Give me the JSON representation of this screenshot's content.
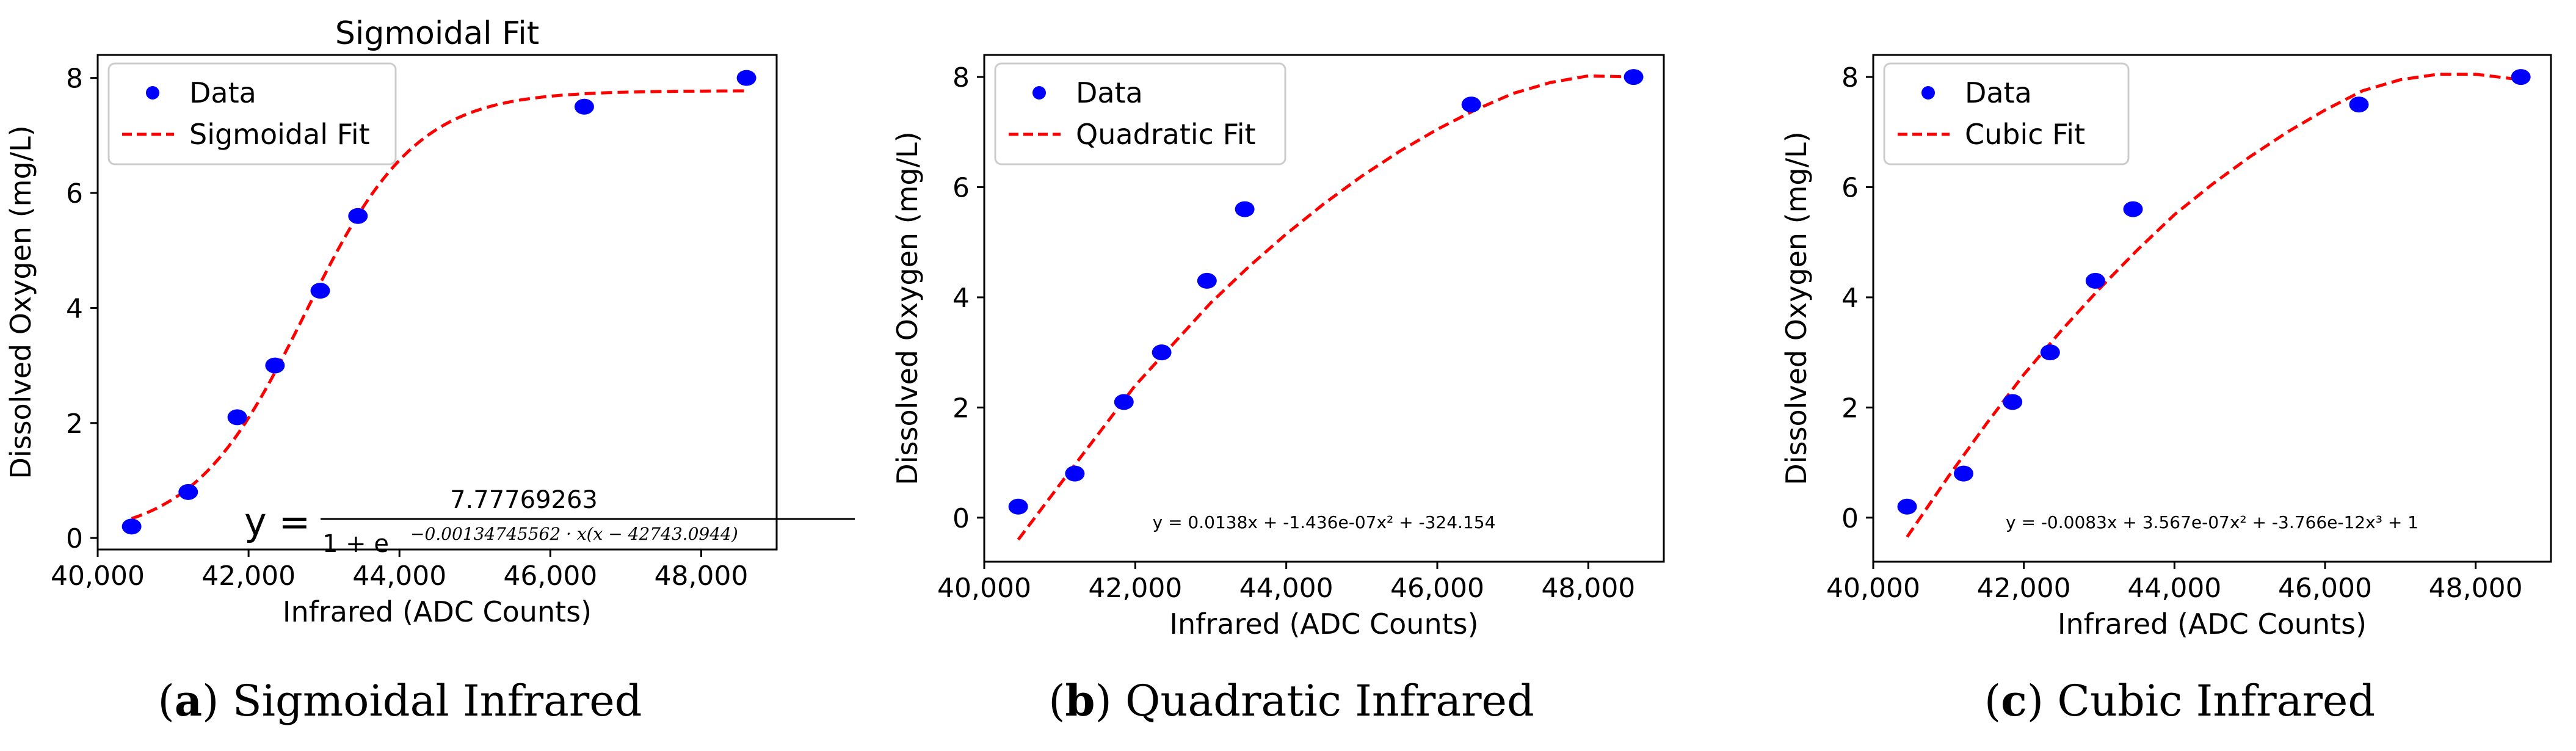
{
  "chart_data": [
    {
      "type": "scatter",
      "title": "Sigmoidal Fit",
      "xlabel": "Infrared (ADC Counts)",
      "ylabel": "Dissolved Oxygen (mg/L)",
      "xlim": [
        40000,
        49000
      ],
      "ylim": [
        -0.2,
        8.4
      ],
      "xticks": [
        40000,
        42000,
        44000,
        46000,
        48000
      ],
      "xtick_labels": [
        "40,000",
        "42,000",
        "44,000",
        "46,000",
        "48,000"
      ],
      "yticks": [
        0,
        2,
        4,
        6,
        8
      ],
      "ytick_labels": [
        "0",
        "2",
        "4",
        "6",
        "8"
      ],
      "series": [
        {
          "name": "Data",
          "kind": "points",
          "color": "#0000ff",
          "x": [
            40450,
            41200,
            41850,
            42350,
            42950,
            43450,
            46450,
            48600
          ],
          "y": [
            0.2,
            0.8,
            2.1,
            3.0,
            4.3,
            5.6,
            7.5,
            8.0
          ]
        },
        {
          "name": "Sigmoidal Fit",
          "kind": "fit",
          "model": "sigmoid",
          "color": "#ff0000",
          "params": {
            "L": 7.77769263,
            "k": 0.00134745562,
            "x0": 42743.0944
          },
          "x_range": [
            40450,
            48600
          ]
        }
      ],
      "legend": [
        "Data",
        "Sigmoidal Fit"
      ],
      "legend_position": "top-left",
      "equation": {
        "lhs": "y =",
        "numerator": "7.77769263",
        "denominator_base": "1 + e",
        "exponent": "−0.00134745562 · x(x − 42743.0944)"
      },
      "caption": {
        "letter": "a",
        "text": "Sigmoidal Infrared"
      }
    },
    {
      "type": "scatter",
      "title": "",
      "xlabel": "Infrared (ADC Counts)",
      "ylabel": "Dissolved Oxygen (mg/L)",
      "xlim": [
        40000,
        49000
      ],
      "ylim": [
        -0.8,
        8.4
      ],
      "xticks": [
        40000,
        42000,
        44000,
        46000,
        48000
      ],
      "xtick_labels": [
        "40,000",
        "42,000",
        "44,000",
        "46,000",
        "48,000"
      ],
      "yticks": [
        0,
        2,
        4,
        6,
        8
      ],
      "ytick_labels": [
        "0",
        "2",
        "4",
        "6",
        "8"
      ],
      "series": [
        {
          "name": "Data",
          "kind": "points",
          "color": "#0000ff",
          "x": [
            40450,
            41200,
            41850,
            42350,
            42950,
            43450,
            46450,
            48600
          ],
          "y": [
            0.2,
            0.8,
            2.1,
            3.0,
            4.3,
            5.6,
            7.5,
            8.0
          ]
        },
        {
          "name": "Quadratic Fit",
          "kind": "fit",
          "model": "quadratic",
          "color": "#ff0000",
          "curve_x": [
            40450,
            41000,
            41500,
            42000,
            42500,
            43000,
            43500,
            44000,
            44500,
            45000,
            45500,
            46000,
            46500,
            47000,
            47500,
            48000,
            48600
          ],
          "curve_y": [
            -0.4,
            0.6,
            1.5,
            2.4,
            3.15,
            3.9,
            4.55,
            5.15,
            5.7,
            6.2,
            6.65,
            7.05,
            7.4,
            7.7,
            7.9,
            8.02,
            8.0
          ]
        }
      ],
      "legend": [
        "Data",
        "Quadratic Fit"
      ],
      "legend_position": "top-left",
      "equation_text": "y = 0.0138x + -1.436e-07x² + -324.154",
      "caption": {
        "letter": "b",
        "text": "Quadratic Infrared"
      }
    },
    {
      "type": "scatter",
      "title": "",
      "xlabel": "Infrared (ADC Counts)",
      "ylabel": "Dissolved Oxygen (mg/L)",
      "xlim": [
        40000,
        49000
      ],
      "ylim": [
        -0.8,
        8.4
      ],
      "xticks": [
        40000,
        42000,
        44000,
        46000,
        48000
      ],
      "xtick_labels": [
        "40,000",
        "42,000",
        "44,000",
        "46,000",
        "48,000"
      ],
      "yticks": [
        0,
        2,
        4,
        6,
        8
      ],
      "ytick_labels": [
        "0",
        "2",
        "4",
        "6",
        "8"
      ],
      "series": [
        {
          "name": "Data",
          "kind": "points",
          "color": "#0000ff",
          "x": [
            40450,
            41200,
            41850,
            42350,
            42950,
            43450,
            46450,
            48600
          ],
          "y": [
            0.2,
            0.8,
            2.1,
            3.0,
            4.3,
            5.6,
            7.5,
            8.0
          ]
        },
        {
          "name": "Cubic Fit",
          "kind": "fit",
          "model": "cubic",
          "color": "#ff0000",
          "curve_x": [
            40450,
            41000,
            41500,
            42000,
            42500,
            43000,
            43500,
            44000,
            44500,
            45000,
            45500,
            46000,
            46500,
            47000,
            47500,
            48000,
            48600
          ],
          "curve_y": [
            -0.35,
            0.75,
            1.7,
            2.6,
            3.4,
            4.15,
            4.85,
            5.5,
            6.05,
            6.55,
            7.0,
            7.4,
            7.75,
            7.95,
            8.05,
            8.05,
            7.95
          ]
        }
      ],
      "legend": [
        "Data",
        "Cubic Fit"
      ],
      "legend_position": "top-left",
      "equation_text": "y = -0.0083x + 3.567e-07x² + -3.766e-12x³ + 1",
      "caption": {
        "letter": "c",
        "text": "Cubic Infrared"
      }
    }
  ]
}
